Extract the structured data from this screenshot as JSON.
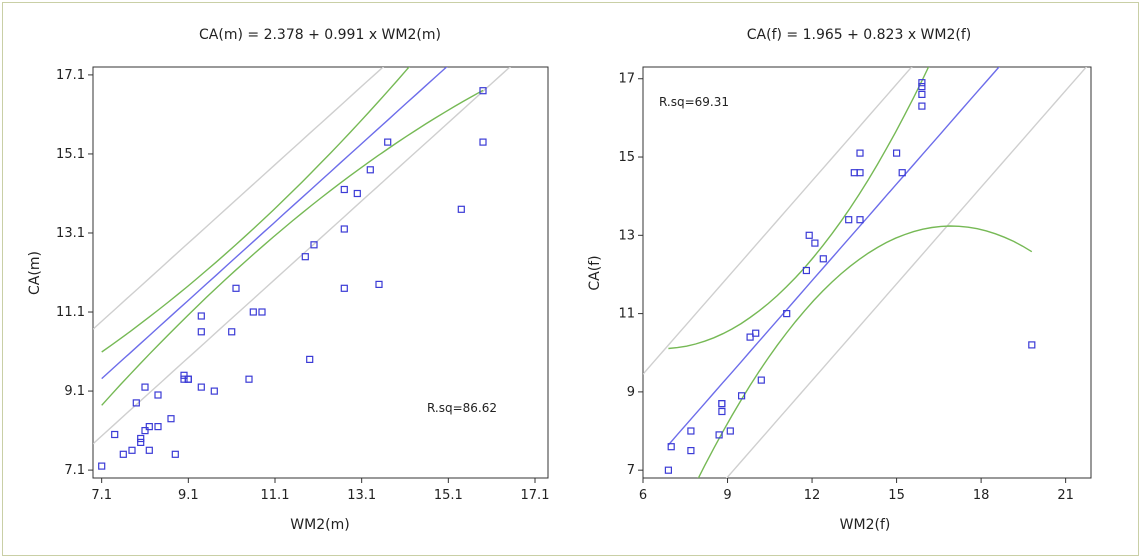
{
  "chart_data": [
    {
      "type": "scatter",
      "title": "CA(m) = 2.378 + 0.991 x WM2(m)",
      "xlabel": "WM2(m)",
      "ylabel": "CA(m)",
      "xlim": [
        6.9,
        17.4
      ],
      "ylim": [
        6.9,
        17.3
      ],
      "xticks": [
        "7.1",
        "9.1",
        "11.1",
        "13.1",
        "15.1",
        "17.1"
      ],
      "yticks": [
        "7.1",
        "9.1",
        "11.1",
        "13.1",
        "15.1",
        "17.1"
      ],
      "annotation": "R.sq=86.62",
      "grid": false,
      "fit": {
        "intercept": 2.378,
        "slope": 0.991
      },
      "x": [
        7.1,
        7.4,
        7.6,
        7.8,
        7.9,
        8.0,
        8.0,
        8.1,
        8.1,
        8.2,
        8.2,
        8.4,
        8.4,
        8.7,
        8.8,
        9.0,
        9.0,
        9.1,
        9.1,
        9.4,
        9.4,
        9.4,
        9.7,
        10.1,
        10.2,
        10.5,
        10.6,
        10.8,
        11.8,
        11.9,
        12.0,
        12.7,
        12.7,
        12.7,
        13.0,
        13.3,
        13.5,
        13.7,
        15.4,
        15.9,
        15.9
      ],
      "y": [
        7.2,
        8.0,
        7.5,
        7.6,
        8.8,
        7.8,
        7.9,
        8.1,
        9.2,
        7.6,
        8.2,
        9.0,
        8.2,
        8.4,
        7.5,
        9.5,
        9.4,
        9.4,
        9.4,
        11.0,
        10.6,
        9.2,
        9.1,
        10.6,
        11.7,
        9.4,
        11.1,
        11.1,
        12.5,
        9.9,
        12.8,
        14.2,
        13.2,
        11.7,
        14.1,
        14.7,
        11.8,
        15.4,
        13.7,
        15.4,
        16.7
      ]
    },
    {
      "type": "scatter",
      "title": "CA(f) = 1.965 + 0.823 x WM2(f)",
      "xlabel": "WM2(f)",
      "ylabel": "CA(f)",
      "xlim": [
        6.0,
        21.9
      ],
      "ylim": [
        6.8,
        17.3
      ],
      "xticks": [
        "6",
        "9",
        "12",
        "15",
        "18",
        "21"
      ],
      "yticks": [
        "7",
        "9",
        "11",
        "13",
        "15",
        "17"
      ],
      "annotation": "R.sq=69.31",
      "grid": false,
      "fit": {
        "intercept": 1.965,
        "slope": 0.823
      },
      "x": [
        6.9,
        7.0,
        7.7,
        7.7,
        8.7,
        8.8,
        8.8,
        8.8,
        9.1,
        9.5,
        9.8,
        10.0,
        10.2,
        11.1,
        11.8,
        11.9,
        12.1,
        12.4,
        13.3,
        13.5,
        13.7,
        13.7,
        13.7,
        15.0,
        15.2,
        15.9,
        15.9,
        15.9,
        15.9,
        19.8
      ],
      "y": [
        7.0,
        7.6,
        8.0,
        7.5,
        7.9,
        8.5,
        8.7,
        8.7,
        8.0,
        8.9,
        10.4,
        10.5,
        9.3,
        11.0,
        12.1,
        13.0,
        12.8,
        12.4,
        13.4,
        14.6,
        15.1,
        14.6,
        13.4,
        15.1,
        14.6,
        16.3,
        16.6,
        16.8,
        16.9,
        10.2
      ]
    }
  ],
  "colors": {
    "points": "#3b3bd6",
    "fit_line": "#6d6dea",
    "confidence_band": "#76b955",
    "prediction_band": "#cfcfcf",
    "axis": "#333333"
  }
}
